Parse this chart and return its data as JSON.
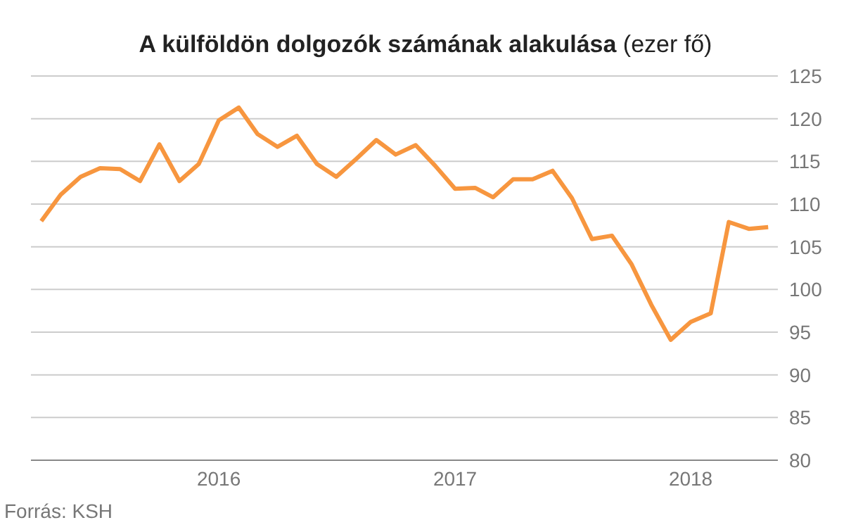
{
  "chart_data": {
    "type": "line",
    "title": "A külföldön dolgozók számának alakulása (ezer fő)",
    "annotations": [
      "Forrás: KSH"
    ],
    "x": [
      "2015-04",
      "2015-05",
      "2015-06",
      "2015-07",
      "2015-08",
      "2015-09",
      "2015-10",
      "2015-11",
      "2015-12",
      "2016-01",
      "2016-02",
      "2016-03",
      "2016-04",
      "2016-05",
      "2016-06",
      "2016-07",
      "2016-08",
      "2016-09",
      "2016-10",
      "2016-11",
      "2016-12",
      "2017-01",
      "2017-02",
      "2017-03",
      "2017-04",
      "2017-05",
      "2017-06",
      "2017-07",
      "2017-08",
      "2017-09",
      "2017-10",
      "2017-11",
      "2017-12",
      "2018-01",
      "2018-02",
      "2018-03",
      "2018-04",
      "2018-05"
    ],
    "series": [
      {
        "color": "#f7963f",
        "values": [
          108.0,
          111.1,
          113.2,
          114.2,
          114.1,
          112.7,
          117.0,
          112.7,
          114.7,
          119.8,
          121.3,
          118.2,
          116.7,
          118.0,
          114.7,
          113.2,
          115.3,
          117.5,
          115.8,
          116.9,
          114.5,
          111.8,
          111.9,
          110.8,
          112.9,
          112.9,
          113.9,
          110.7,
          105.9,
          106.3,
          103.0,
          98.2,
          94.1,
          96.2,
          97.2,
          107.9,
          107.1,
          107.3
        ]
      }
    ],
    "xlim": [
      "2015-03-16",
      "2018-05-16"
    ],
    "xticks": [
      {
        "value": "2016-01",
        "label": "2016"
      },
      {
        "value": "2017-01",
        "label": "2017"
      },
      {
        "value": "2018-01",
        "label": "2018"
      }
    ],
    "ylim": [
      80,
      125
    ],
    "yticks": [
      80,
      85,
      90,
      95,
      100,
      105,
      110,
      115,
      120,
      125
    ],
    "grid": "y",
    "legend": false
  }
}
